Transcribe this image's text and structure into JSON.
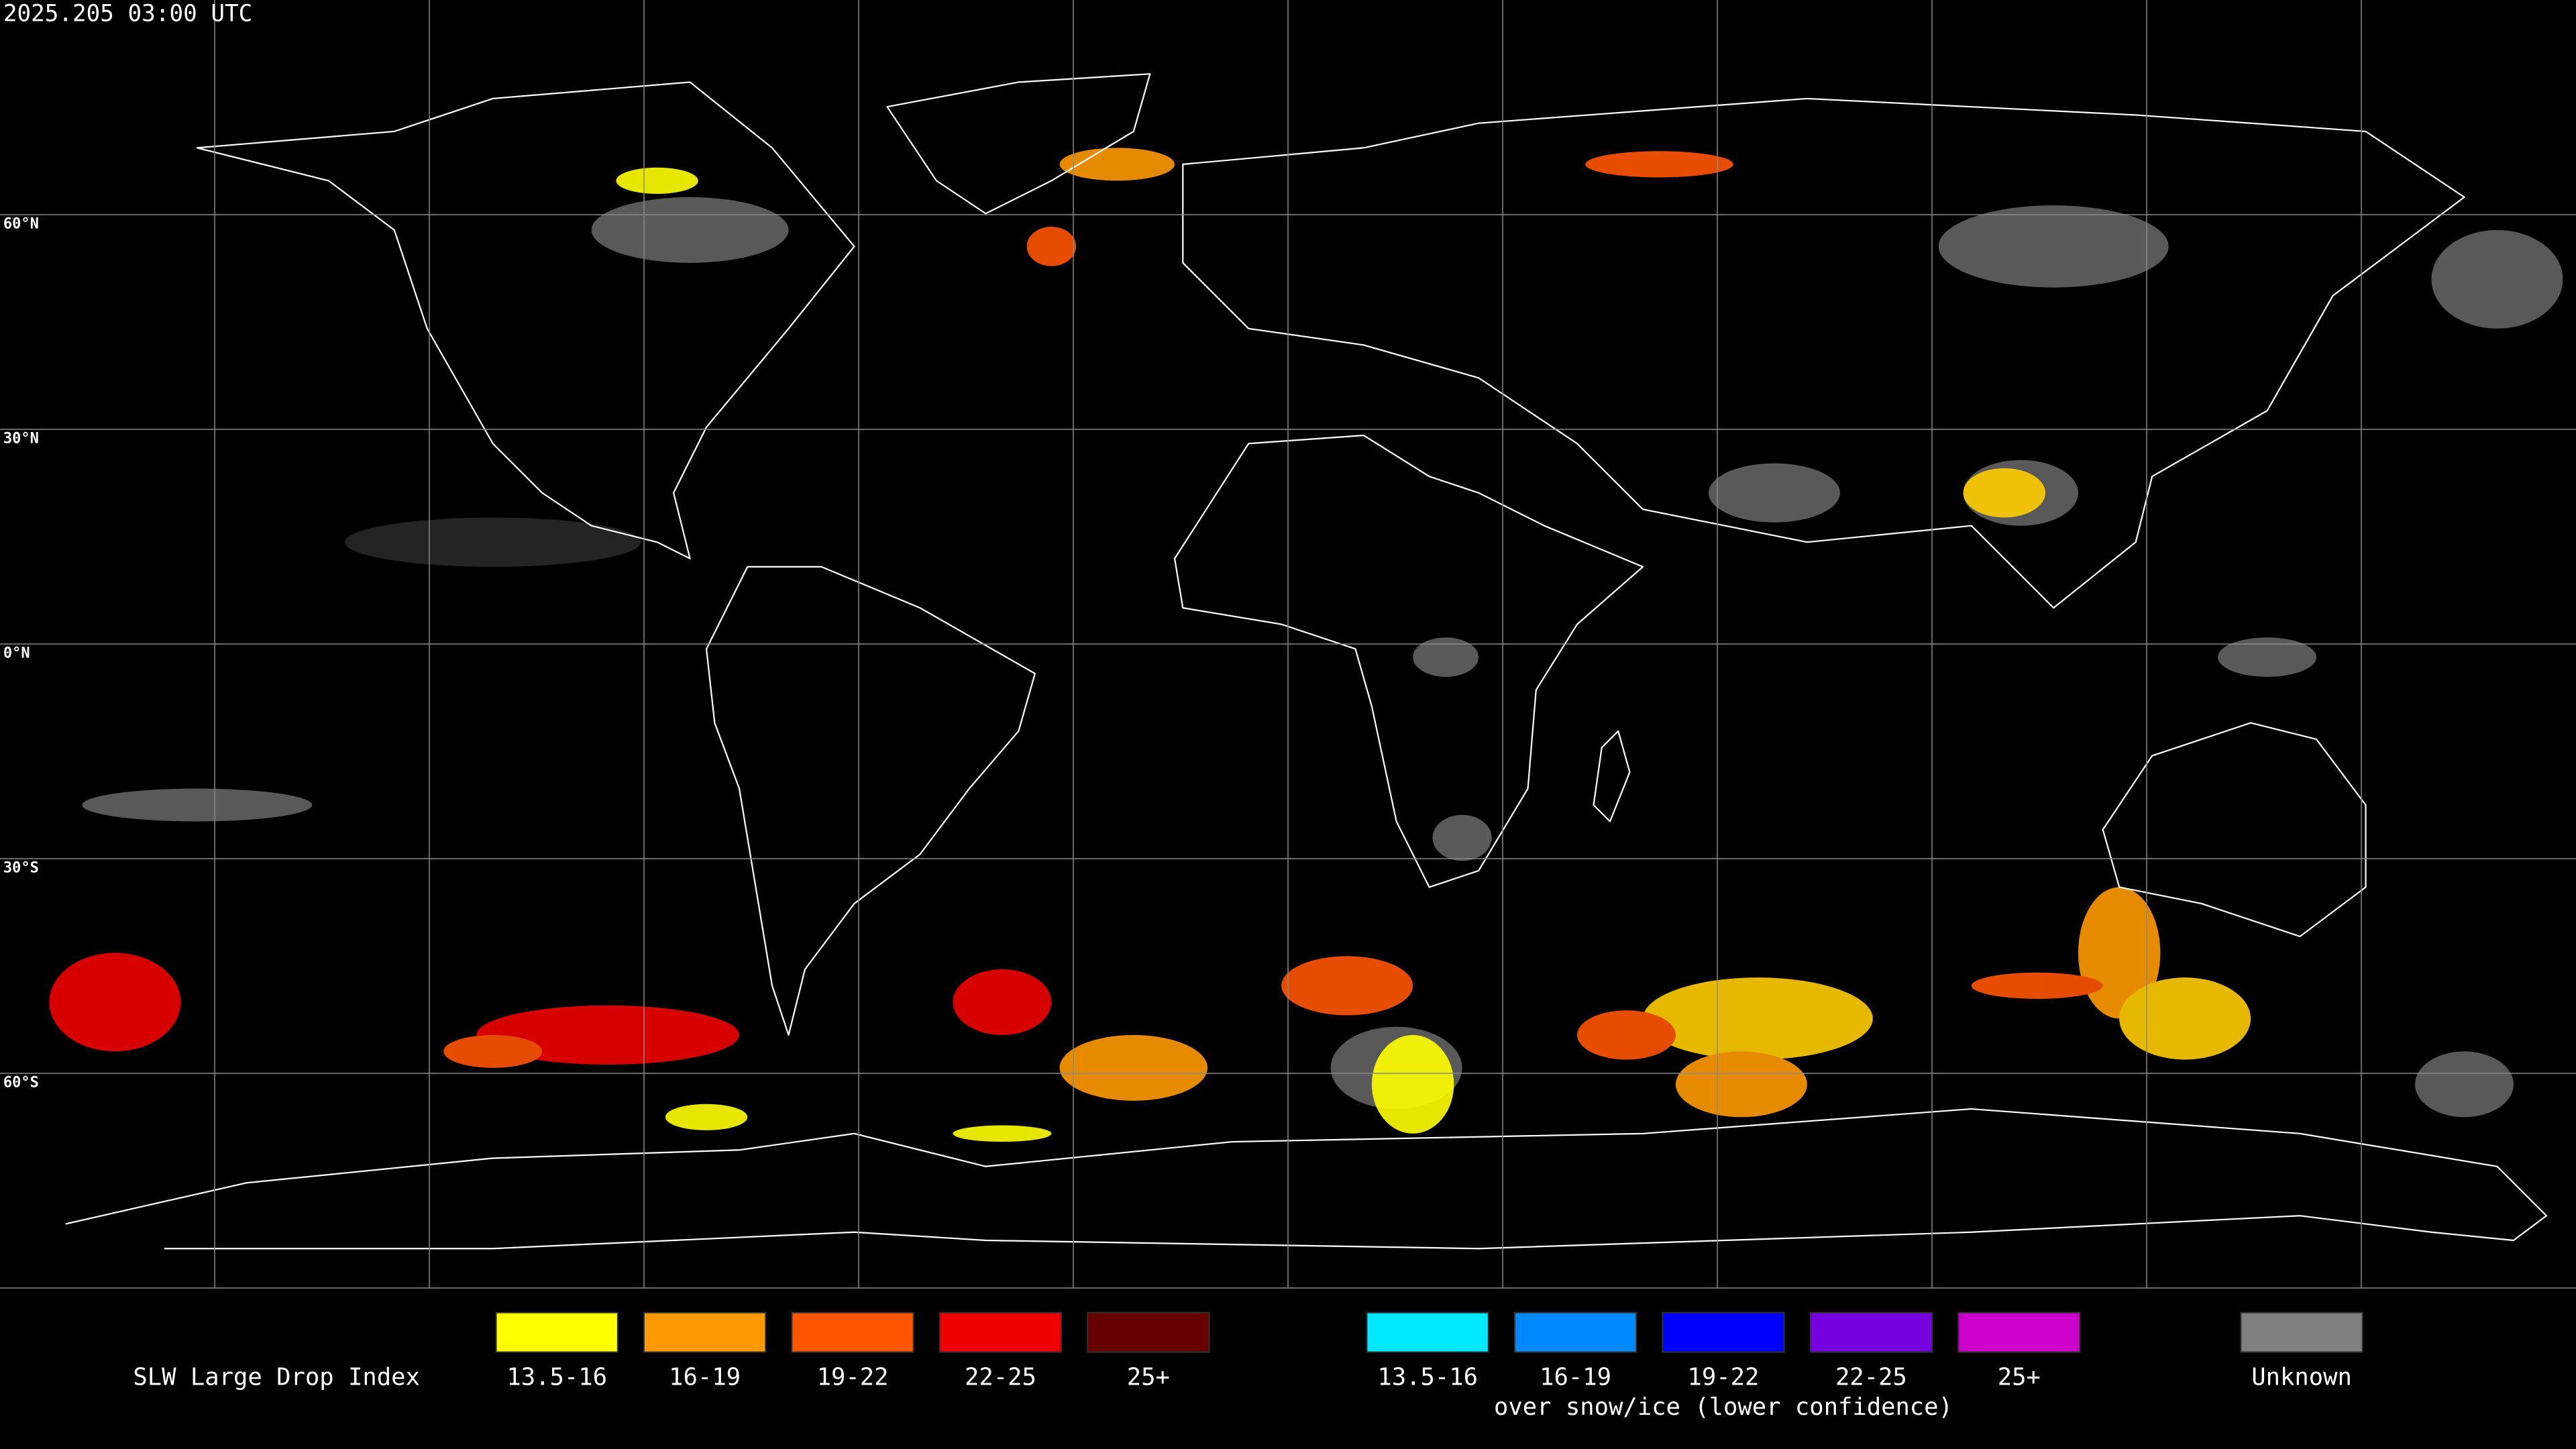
{
  "header": {
    "timestamp": "2025.205 03:00 UTC"
  },
  "map": {
    "latitude_labels": [
      "60°N",
      "30°N",
      "0°N",
      "30°S",
      "60°S"
    ]
  },
  "legend": {
    "title": "SLW Large Drop Index",
    "groups": [
      {
        "items": [
          {
            "label": "13.5-16",
            "color": "#ffff00"
          },
          {
            "label": "16-19",
            "color": "#ff9900"
          },
          {
            "label": "19-22",
            "color": "#ff5500"
          },
          {
            "label": "22-25",
            "color": "#ee0000"
          },
          {
            "label": "25+",
            "color": "#660000"
          }
        ]
      },
      {
        "note": "over snow/ice (lower confidence)",
        "items": [
          {
            "label": "13.5-16",
            "color": "#00e8ff"
          },
          {
            "label": "16-19",
            "color": "#0088ff"
          },
          {
            "label": "19-22",
            "color": "#0000ff"
          },
          {
            "label": "22-25",
            "color": "#7700e0"
          },
          {
            "label": "25+",
            "color": "#cc00cc"
          }
        ]
      },
      {
        "items": [
          {
            "label": "Unknown",
            "color": "#808080"
          }
        ]
      }
    ]
  }
}
